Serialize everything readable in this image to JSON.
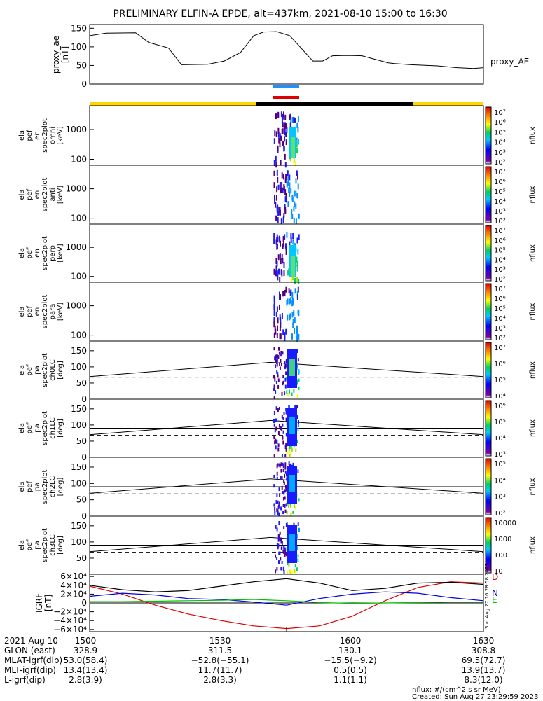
{
  "title": "PRELIMINARY ELFIN-A EPDE, alt=437km, 2021-08-10 15:00 to 16:30",
  "chart_data": [
    {
      "type": "line",
      "panel": "proxy_ae",
      "ylabel": [
        "proxy_ae",
        "[nT]"
      ],
      "legend": "proxy_AE",
      "ylim": [
        0,
        160
      ],
      "yticks": [
        "150",
        "100",
        "50",
        "0"
      ],
      "x_minutes": [
        0,
        5,
        14,
        18,
        24,
        28,
        36,
        41,
        46,
        50,
        53,
        57,
        61,
        68,
        71,
        74,
        78,
        83,
        91,
        93,
        98,
        106,
        112,
        117,
        120
      ],
      "y": [
        130,
        137,
        138,
        112,
        97,
        52,
        53,
        62,
        85,
        130,
        140,
        141,
        130,
        62,
        62,
        76,
        77,
        76,
        57,
        55,
        52,
        49,
        44,
        42,
        44
      ]
    },
    {
      "type": "heatmap",
      "panel": "omni",
      "ylabel": [
        "ela",
        "pef",
        "en",
        "spec2plot",
        "omni",
        "[keV]"
      ],
      "yticks": [
        "1000",
        "100"
      ],
      "colorbar_label": "nflux",
      "colorbar_ticks": [
        "10⁷",
        "10⁶",
        "10⁵",
        "10⁴",
        "10³",
        "10²"
      ]
    },
    {
      "type": "heatmap",
      "panel": "anti",
      "ylabel": [
        "ela",
        "pef",
        "en",
        "spec2plot",
        "anti",
        "[keV]"
      ],
      "yticks": [
        "1000",
        "100"
      ],
      "colorbar_label": "nflux",
      "colorbar_ticks": [
        "10⁷",
        "10⁶",
        "10⁵",
        "10⁴",
        "10³",
        "10²"
      ]
    },
    {
      "type": "heatmap",
      "panel": "perp",
      "ylabel": [
        "ela",
        "pef",
        "en",
        "spec2plot",
        "perp",
        "[keV]"
      ],
      "yticks": [
        "1000",
        "100"
      ],
      "colorbar_label": "nflux",
      "colorbar_ticks": [
        "10⁷",
        "10⁶",
        "10⁵",
        "10⁴",
        "10³",
        "10²"
      ]
    },
    {
      "type": "heatmap",
      "panel": "para",
      "ylabel": [
        "ela",
        "pef",
        "en",
        "spec2plot",
        "para",
        "[keV]"
      ],
      "yticks": [
        "1000",
        "100"
      ],
      "colorbar_label": "nflux",
      "colorbar_ticks": [
        "10⁷",
        "10⁶",
        "10⁵",
        "10⁴",
        "10³",
        "10²"
      ]
    },
    {
      "type": "heatmap",
      "panel": "ch0LC",
      "ylabel": [
        "ela",
        "pef",
        "pa",
        "spec2plot",
        "ch0LC",
        "[deg]"
      ],
      "yticks": [
        "150",
        "100",
        "50",
        "0"
      ],
      "colorbar_label": "nflux",
      "colorbar_ticks": [
        "10⁷",
        "10⁶",
        "10⁵",
        "10⁴"
      ]
    },
    {
      "type": "heatmap",
      "panel": "ch1LC",
      "ylabel": [
        "ela",
        "pef",
        "pa",
        "spec2plot",
        "ch1LC",
        "[deg]"
      ],
      "yticks": [
        "150",
        "100",
        "50",
        "0"
      ],
      "colorbar_label": "nflux",
      "colorbar_ticks": [
        "10⁶",
        "10⁵",
        "10⁴",
        "10³"
      ]
    },
    {
      "type": "heatmap",
      "panel": "ch2LC",
      "ylabel": [
        "ela",
        "pef",
        "pa",
        "spec2plot",
        "ch2LC",
        "[deg]"
      ],
      "yticks": [
        "150",
        "100",
        "50",
        "0"
      ],
      "colorbar_label": "nflux",
      "colorbar_ticks": [
        "10⁵",
        "10⁴",
        "10³",
        "10²"
      ]
    },
    {
      "type": "heatmap",
      "panel": "ch3LC",
      "ylabel": [
        "ela",
        "pef",
        "pa",
        "spec2plot",
        "ch3LC",
        "[deg]"
      ],
      "yticks": [
        "150",
        "100",
        "50"
      ],
      "colorbar_label": "nflux",
      "colorbar_ticks": [
        "10000",
        "1000",
        "100",
        "10"
      ]
    },
    {
      "type": "line",
      "panel": "IGRF",
      "ylabel": [
        "IGRF",
        "[nT]"
      ],
      "ylim": [
        -65000,
        65000
      ],
      "yticks": [
        "6×10⁴",
        "4×10⁴",
        "2×10⁴",
        "0",
        "−2×10⁴",
        "−4×10⁴",
        "−6×10⁴"
      ],
      "x_minutes": [
        0,
        10,
        20,
        30,
        40,
        50,
        60,
        70,
        80,
        90,
        100,
        110,
        120
      ],
      "series": [
        {
          "name": "D",
          "color": "#e00000",
          "values": [
            38000,
            20000,
            -5000,
            -25000,
            -40000,
            -52000,
            -58000,
            -52000,
            -30000,
            5000,
            35000,
            48000,
            45000
          ]
        },
        {
          "name": "N",
          "color": "#0000e0",
          "values": [
            15000,
            22000,
            18000,
            10000,
            8000,
            2000,
            -5000,
            10000,
            20000,
            25000,
            22000,
            12000,
            5000
          ]
        },
        {
          "name": "E",
          "color": "#00c000",
          "values": [
            3000,
            3000,
            4000,
            5000,
            6000,
            8000,
            5000,
            1000,
            -1000,
            0,
            1000,
            2000,
            2000
          ]
        },
        {
          "values": [
            40000,
            30000,
            25000,
            28000,
            38000,
            48000,
            55000,
            45000,
            28000,
            33000,
            45000,
            47000,
            42000
          ]
        }
      ],
      "side_text": "Sun Aug 27 16:28:58 2023"
    }
  ],
  "x_axis": {
    "ticks": [
      "1500",
      "1530",
      "1600",
      "1630"
    ],
    "rows": [
      {
        "label": "2021 Aug 10",
        "values": [
          "1500",
          "1530",
          "1600",
          "1630"
        ]
      },
      {
        "label": "GLON (east)",
        "values": [
          "328.9",
          "311.5",
          "130.1",
          "308.8"
        ]
      },
      {
        "label": "MLAT-igrf(dip)",
        "values": [
          "53.0(58.4)",
          "−52.8(−55.1)",
          "−15.5(−9.2)",
          "69.5(72.7)"
        ]
      },
      {
        "label": "MLT-igrf(dip)",
        "values": [
          "13.4(13.4)",
          "11.7(11.7)",
          "0.5(0.5)",
          "13.9(13.7)"
        ]
      },
      {
        "label": "L-igrf(dip)",
        "values": [
          "2.8(3.9)",
          "2.8(3.3)",
          "1.1(1.1)",
          "8.3(12.0)"
        ]
      }
    ]
  },
  "notes": {
    "units": "nflux: #/(cm^2 s sr MeV)",
    "created": "Created: Sun Aug 27 23:29:59 2023"
  }
}
